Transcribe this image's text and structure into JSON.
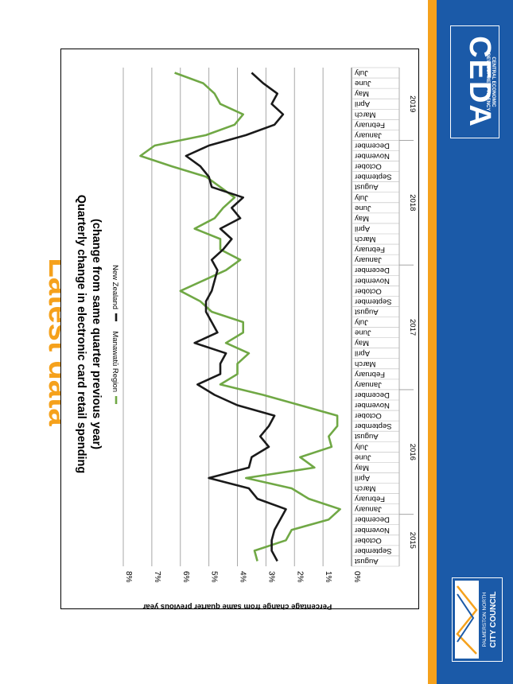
{
  "slide": {
    "title": "Latest data",
    "accent_orange": "#f5a11c",
    "brand_blue": "#1b5aa8"
  },
  "logos": {
    "ceda": {
      "name": "CEDA",
      "sub1": "CENTRAL ECONOMIC",
      "sub2": "DEVELOPMENT AGENCY"
    },
    "council": {
      "line1": "PALMERSTON NORTH",
      "line2": "CITY COUNCIL"
    }
  },
  "chart_data": {
    "type": "line",
    "title": "Quarterly change in electronic card retail spending",
    "subtitle": "(change from same quarter previous year)",
    "ylabel": "Percentage change from same quarter previous year",
    "xlabel": "",
    "ylim": [
      0,
      8
    ],
    "yticks": [
      "0%",
      "1%",
      "2%",
      "3%",
      "4%",
      "5%",
      "6%",
      "7%",
      "8%"
    ],
    "grid": true,
    "legend_position": "top",
    "categories": [
      "August",
      "September",
      "October",
      "November",
      "December",
      "January",
      "February",
      "March",
      "April",
      "May",
      "June",
      "July",
      "August",
      "September",
      "October",
      "November",
      "December",
      "January",
      "February",
      "March",
      "April",
      "May",
      "June",
      "July",
      "August",
      "September",
      "October",
      "November",
      "December",
      "January",
      "February",
      "March",
      "April",
      "May",
      "June",
      "July",
      "August",
      "September",
      "October",
      "November",
      "December",
      "January",
      "February",
      "March",
      "April",
      "May",
      "June",
      "July"
    ],
    "years": [
      {
        "label": "2015",
        "start": 0,
        "end": 4
      },
      {
        "label": "2016",
        "start": 5,
        "end": 16
      },
      {
        "label": "2017",
        "start": 17,
        "end": 28
      },
      {
        "label": "2018",
        "start": 29,
        "end": 40
      },
      {
        "label": "2019",
        "start": 41,
        "end": 47
      }
    ],
    "series": [
      {
        "name": "Manawatū Region",
        "color": "#70a845",
        "values": [
          3.3,
          3.4,
          2.3,
          2.1,
          0.8,
          0.4,
          1.5,
          2.1,
          3.7,
          1.3,
          1.8,
          0.7,
          0.8,
          0.5,
          0.5,
          1.8,
          3.1,
          4.6,
          4.0,
          4.0,
          3.6,
          4.4,
          3.8,
          3.8,
          4.9,
          5.3,
          6.0,
          5.2,
          4.4,
          3.9,
          4.6,
          4.6,
          5.5,
          4.8,
          4.5,
          4.1,
          4.6,
          5.1,
          6.3,
          7.4,
          6.9,
          5.1,
          4.1,
          3.8,
          4.6,
          4.8,
          5.2,
          6.2
        ]
      },
      {
        "name": "New Zealand",
        "color": "#1a1a1a",
        "values": [
          2.6,
          2.8,
          2.8,
          2.7,
          2.5,
          2.3,
          3.3,
          3.6,
          5.0,
          3.6,
          3.5,
          2.9,
          3.2,
          2.9,
          2.7,
          4.0,
          4.8,
          5.4,
          4.6,
          4.6,
          4.4,
          5.5,
          4.7,
          4.9,
          5.1,
          5.1,
          4.9,
          4.8,
          4.7,
          4.9,
          4.5,
          4.2,
          4.6,
          3.9,
          4.2,
          3.8,
          4.9,
          5.0,
          5.3,
          5.8,
          5.0,
          3.7,
          2.7,
          2.4,
          2.8,
          2.6,
          3.1,
          3.5
        ]
      }
    ]
  }
}
